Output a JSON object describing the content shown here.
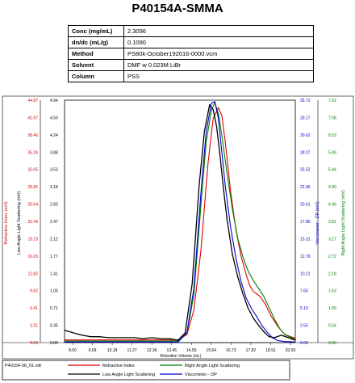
{
  "title": "P40154A-SMMA",
  "properties": [
    {
      "key": "Conc (mg/mL)",
      "value": "2.3096"
    },
    {
      "key": "dn/dc (mL/g)",
      "value": "0.1090"
    },
    {
      "key": "Method",
      "value": "PS80k-October192016-0000.vcm"
    },
    {
      "key": "Solvent",
      "value": "DMF w 0.023M LiBr"
    },
    {
      "key": "Column",
      "value": "PSS"
    }
  ],
  "chart_data": {
    "type": "line",
    "xlabel": "Retention Volume (mL)",
    "xlim": [
      7.0,
      20.2
    ],
    "x_ticks": [
      "8.00",
      "9.09",
      "10.18",
      "11.27",
      "12.36",
      "13.45",
      "14.55",
      "15.64",
      "16.73",
      "17.82",
      "18.91",
      "20.00"
    ],
    "axes": {
      "ri": {
        "label": "Refractive Index (mV)",
        "color": "#e00000",
        "ticks": [
          "0.00",
          "3.21",
          "6.41",
          "9.62",
          "12.82",
          "16.03",
          "19.23",
          "22.44",
          "25.64",
          "28.85",
          "32.05",
          "35.26",
          "38.46",
          "41.67",
          "44.87"
        ],
        "range": [
          0,
          44.87
        ]
      },
      "lals": {
        "label": "Low Angle Light Scattering (mV)",
        "color": "#000000",
        "ticks": [
          "0.00",
          "0.35",
          "0.71",
          "1.06",
          "1.41",
          "1.77",
          "2.12",
          "2.47",
          "2.83",
          "3.18",
          "3.53",
          "3.88",
          "4.24",
          "4.59",
          "4.94"
        ],
        "range": [
          0,
          4.94
        ]
      },
      "dp": {
        "label": "Viscometer - DP (mV)",
        "color": "#0000d0",
        "ticks": [
          "0.00",
          "2.55",
          "5.10",
          "7.65",
          "10.21",
          "12.76",
          "15.31",
          "17.86",
          "20.41",
          "22.96",
          "25.52",
          "28.07",
          "30.62",
          "33.17",
          "35.72"
        ],
        "range": [
          0,
          35.72
        ]
      },
      "rals": {
        "label": "Right Angle Light Scattering (mV)",
        "color": "#008000",
        "ticks": [
          "0.00",
          "0.54",
          "1.09",
          "1.63",
          "2.18",
          "2.72",
          "3.27",
          "3.81",
          "4.36",
          "4.90",
          "5.44",
          "5.99",
          "6.53",
          "7.08",
          "7.62"
        ],
        "range": [
          0,
          7.62
        ]
      }
    },
    "series": [
      {
        "name": "Refractive Index",
        "axis": "ri",
        "color": "#e00000",
        "x": [
          7.0,
          13.5,
          14.0,
          14.4,
          14.8,
          15.2,
          15.5,
          15.8,
          16.0,
          16.2,
          16.5,
          16.8,
          17.1,
          17.4,
          17.6,
          17.8,
          18.0,
          18.2,
          18.5,
          18.8,
          19.2,
          19.6,
          20.2
        ],
        "y": [
          0.5,
          0.5,
          1.5,
          6,
          17,
          33,
          41.5,
          43.5,
          42,
          37,
          28,
          21,
          16,
          12.5,
          10.5,
          9.5,
          9,
          8.5,
          7,
          5,
          3,
          1.5,
          0.8
        ]
      },
      {
        "name": "Right Angle Light Scattering",
        "axis": "rals",
        "color": "#008000",
        "x": [
          7.0,
          13.5,
          14.0,
          14.4,
          14.8,
          15.1,
          15.4,
          15.6,
          15.8,
          16.0,
          16.3,
          16.6,
          16.9,
          17.2,
          17.5,
          17.8,
          18.1,
          18.4,
          18.7,
          19.0,
          19.3,
          19.6,
          20.2
        ],
        "y": [
          0.05,
          0.05,
          0.3,
          1.5,
          4.3,
          6.3,
          7.3,
          7.55,
          7.2,
          6.5,
          5.3,
          4.2,
          3.3,
          2.7,
          2.25,
          1.95,
          1.7,
          1.45,
          1.1,
          0.75,
          0.45,
          0.25,
          0.1
        ]
      },
      {
        "name": "Low Angle Light Scattering",
        "axis": "lals",
        "color": "#000000",
        "x": [
          7.0,
          7.5,
          8.0,
          8.5,
          9.0,
          9.5,
          10.0,
          10.5,
          11.0,
          11.5,
          12.0,
          12.5,
          13.0,
          13.5,
          13.9,
          14.3,
          14.7,
          15.0,
          15.3,
          15.5,
          15.7,
          15.9,
          16.1,
          16.3,
          16.6,
          16.9,
          17.2,
          17.5,
          17.8,
          18.1,
          18.4,
          18.7,
          19.0,
          19.4,
          19.8,
          20.2
        ],
        "y": [
          0.25,
          0.2,
          0.15,
          0.12,
          0.12,
          0.1,
          0.1,
          0.1,
          0.1,
          0.08,
          0.1,
          0.08,
          0.08,
          0.05,
          0.2,
          1.2,
          3.2,
          4.3,
          4.85,
          4.75,
          4.4,
          3.8,
          3.1,
          2.5,
          1.8,
          1.35,
          1.0,
          0.7,
          0.5,
          0.35,
          0.22,
          0.12,
          0.1,
          0.15,
          0.1,
          0.05
        ]
      },
      {
        "name": "Viscometer - DP",
        "axis": "dp",
        "color": "#0000d0",
        "x": [
          7.0,
          13.5,
          14.0,
          14.4,
          14.8,
          15.1,
          15.4,
          15.6,
          15.8,
          16.0,
          16.2,
          16.5,
          16.8,
          17.1,
          17.4,
          17.7,
          18.0,
          18.3,
          18.6,
          18.9,
          19.2,
          19.6,
          20.2
        ],
        "y": [
          0.1,
          0.1,
          1.5,
          8,
          22,
          31,
          35.3,
          35.5,
          33,
          28,
          23,
          17,
          12.5,
          9,
          6.5,
          5,
          3.8,
          2.5,
          1.5,
          0.7,
          0.3,
          0.15,
          0.1
        ]
      }
    ]
  },
  "footer": {
    "filename": "P40154-36_01.vdt",
    "legend": [
      "Refractive Index",
      "Right Angle Light Scattering",
      "Low Angle Light Scattering",
      "Viscometer - DP"
    ]
  }
}
